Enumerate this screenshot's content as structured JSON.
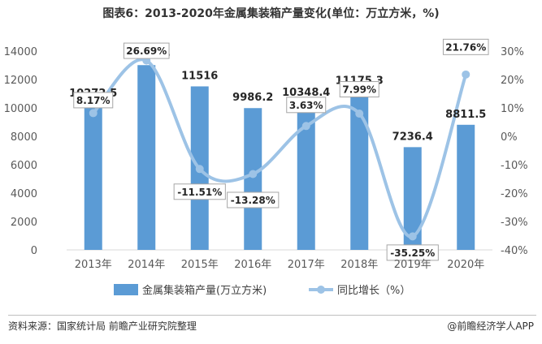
{
  "chart_data": {
    "type": "bar+line",
    "title": "图表6：2013-2020年金属集装箱产量变化(单位：万立方米，%)",
    "categories": [
      "2013年",
      "2014年",
      "2015年",
      "2016年",
      "2017年",
      "2018年",
      "2019年",
      "2020年"
    ],
    "series": [
      {
        "name": "金属集装箱产量(万立方米)",
        "type": "bar",
        "axis": "left",
        "color": "#5b9bd5",
        "values": [
          10272.5,
          13014.5,
          11516,
          9986.2,
          10348.4,
          11175.3,
          7236.4,
          8811.5
        ],
        "labels": [
          "10272.5",
          "13014.5",
          "11516",
          "9986.2",
          "10348.4",
          "11175.3",
          "7236.4",
          "8811.5"
        ]
      },
      {
        "name": "同比增长（%）",
        "type": "line",
        "axis": "right",
        "color": "#9dc3e6",
        "values": [
          8.17,
          26.69,
          -11.51,
          -13.28,
          3.63,
          7.99,
          -35.25,
          21.76
        ],
        "labels": [
          "8.17%",
          "26.69%",
          "-11.51%",
          "-13.28%",
          "3.63%",
          "7.99%",
          "-35.25%",
          "21.76%"
        ]
      }
    ],
    "y_left": {
      "min": 0,
      "max": 14000,
      "ticks": [
        0,
        2000,
        4000,
        6000,
        8000,
        10000,
        12000,
        14000
      ]
    },
    "y_right": {
      "min": -40,
      "max": 30,
      "ticks": [
        "-40%",
        "-30%",
        "-20%",
        "-10%",
        "0%",
        "10%",
        "20%",
        "30%"
      ]
    },
    "legend_position": "bottom"
  },
  "footer": {
    "source": "资料来源：国家统计局 前瞻产业研究院整理",
    "brand": "@前瞻经济学人APP"
  }
}
